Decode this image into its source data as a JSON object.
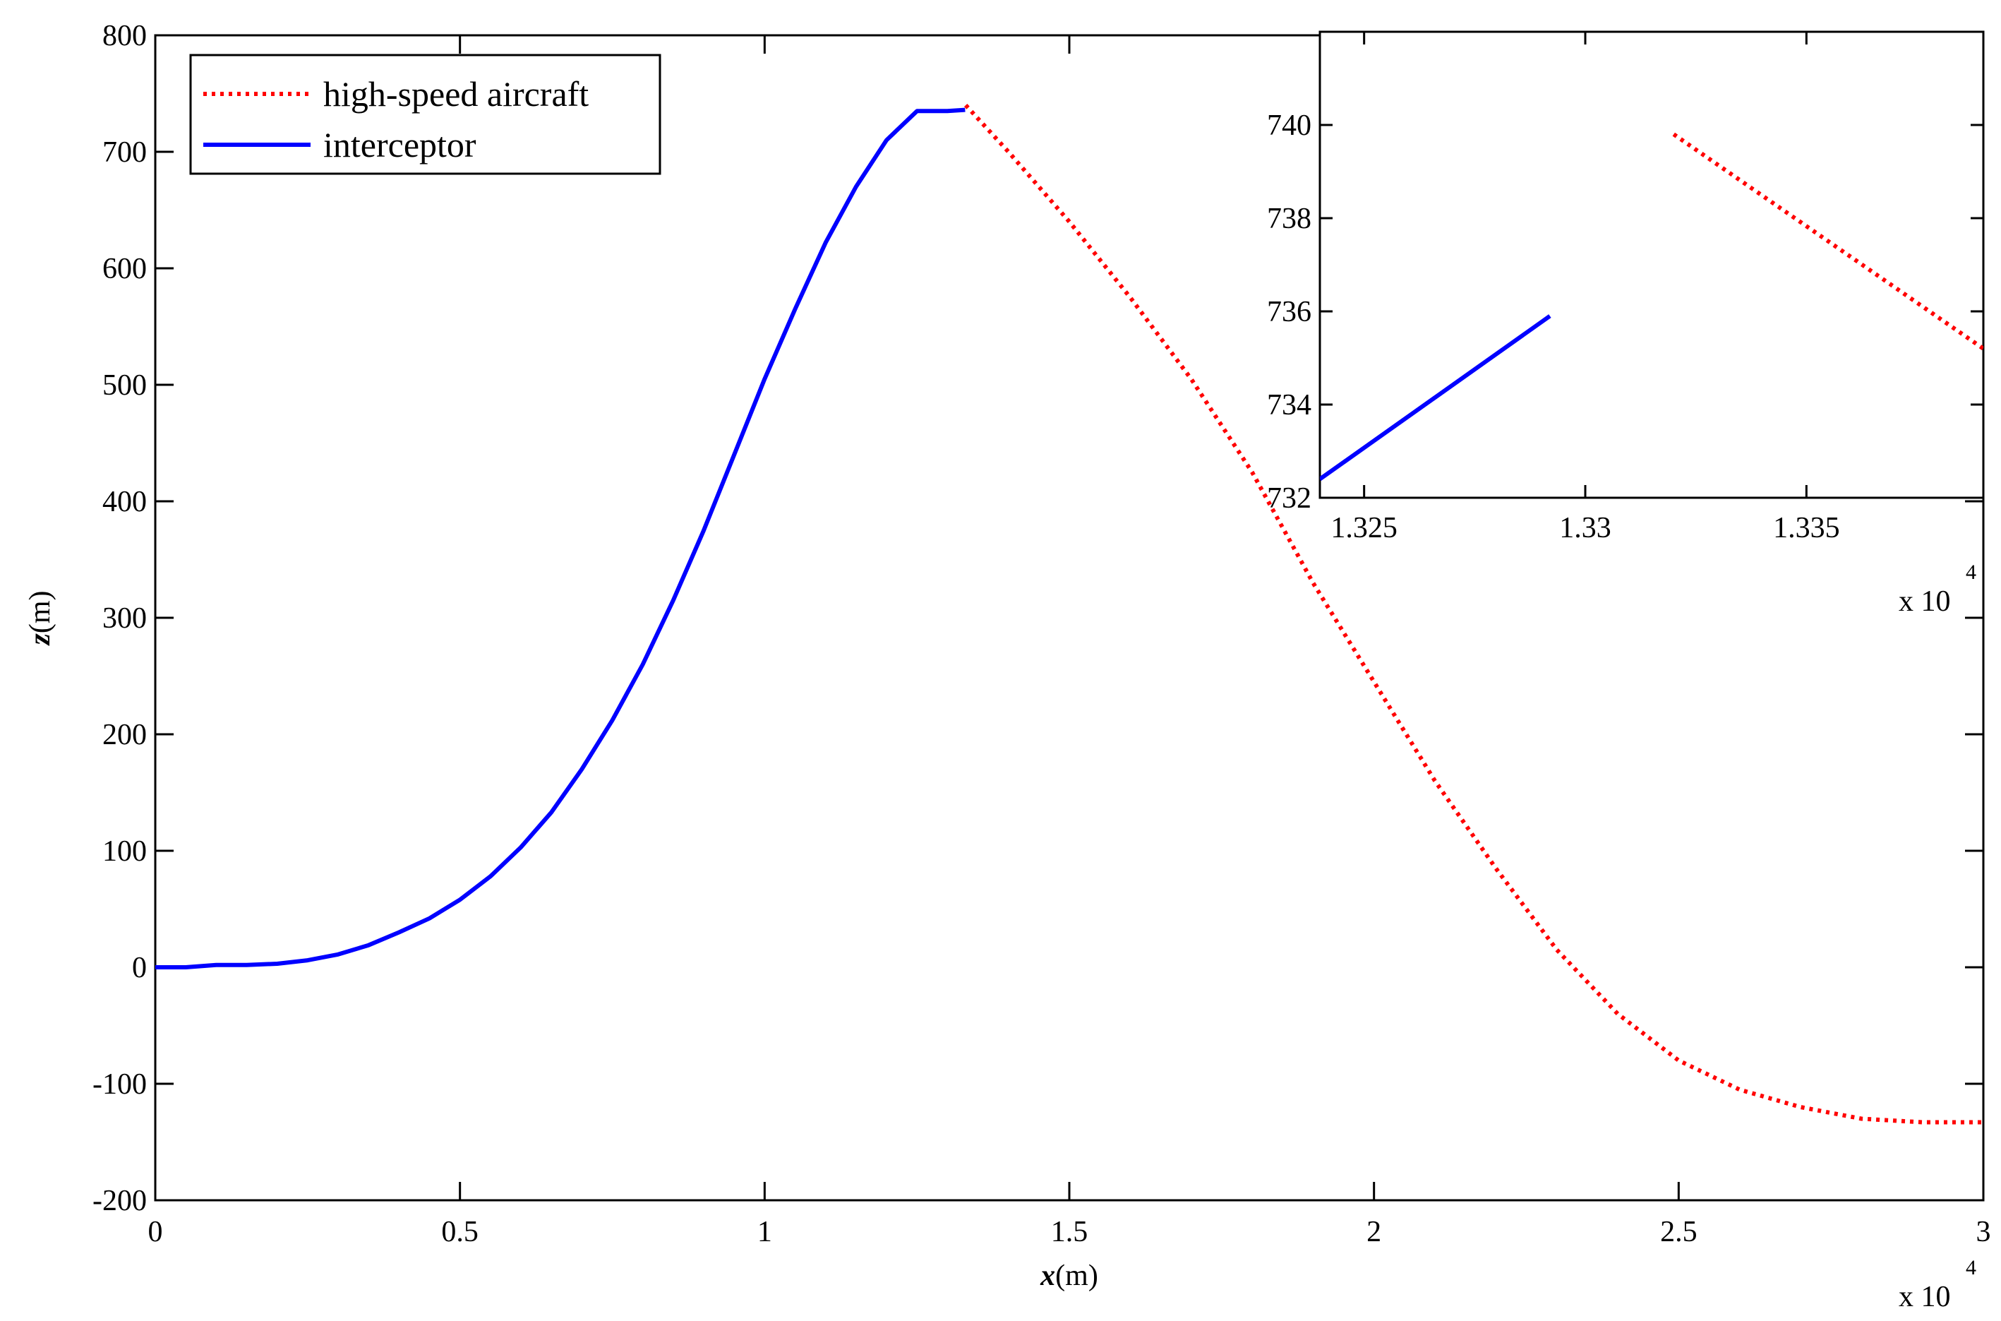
{
  "chart_data": [
    {
      "type": "line",
      "title": "",
      "xlabel": "x(m)",
      "ylabel": "z(m)",
      "x_multiplier_label": "x 10",
      "x_multiplier_exp": "4",
      "xlim": [
        0,
        30000
      ],
      "ylim": [
        -200,
        800
      ],
      "x_ticks": [
        0,
        5000,
        10000,
        15000,
        20000,
        25000,
        30000
      ],
      "x_tick_labels": [
        "0",
        "0.5",
        "1",
        "1.5",
        "2",
        "2.5",
        "3"
      ],
      "y_ticks": [
        -200,
        -100,
        0,
        100,
        200,
        300,
        400,
        500,
        600,
        700,
        800
      ],
      "y_tick_labels": [
        "-200",
        "-100",
        "0",
        "100",
        "200",
        "300",
        "400",
        "500",
        "600",
        "700",
        "800"
      ],
      "grid": false,
      "legend_position": "top-left",
      "series": [
        {
          "name": "high-speed aircraft",
          "color": "#ff0000",
          "style": "dotted",
          "x": [
            13300,
            14000,
            15000,
            16000,
            17000,
            18000,
            19000,
            20000,
            21000,
            22000,
            23000,
            24000,
            25000,
            26000,
            27000,
            28000,
            29000,
            30000
          ],
          "y": [
            740,
            700,
            640,
            575,
            505,
            425,
            330,
            245,
            160,
            85,
            15,
            -40,
            -80,
            -105,
            -120,
            -130,
            -133,
            -133
          ]
        },
        {
          "name": "interceptor",
          "color": "#0000ff",
          "style": "solid",
          "x": [
            0,
            500,
            1000,
            1500,
            2000,
            2500,
            3000,
            3500,
            4000,
            4500,
            5000,
            5500,
            6000,
            6500,
            7000,
            7500,
            8000,
            8500,
            9000,
            9500,
            10000,
            10500,
            11000,
            11500,
            12000,
            12500,
            13000,
            13290
          ],
          "y": [
            0,
            0,
            2,
            2,
            3,
            6,
            11,
            19,
            30,
            42,
            58,
            78,
            103,
            133,
            170,
            212,
            260,
            315,
            375,
            440,
            505,
            565,
            622,
            670,
            710,
            735,
            735,
            736
          ]
        }
      ]
    },
    {
      "type": "line",
      "title": "",
      "xlabel": "",
      "ylabel": "",
      "x_multiplier_label": "x 10",
      "x_multiplier_exp": "4",
      "xlim": [
        13240,
        13390
      ],
      "ylim": [
        732,
        742
      ],
      "x_ticks": [
        13250,
        13300,
        13350
      ],
      "x_tick_labels": [
        "1.325",
        "1.33",
        "1.335"
      ],
      "y_ticks": [
        732,
        734,
        736,
        738,
        740
      ],
      "y_tick_labels": [
        "732",
        "734",
        "736",
        "738",
        "740"
      ],
      "grid": false,
      "series": [
        {
          "name": "high-speed aircraft",
          "color": "#ff0000",
          "style": "dotted",
          "x": [
            13320,
            13390
          ],
          "y": [
            739.8,
            735.2
          ]
        },
        {
          "name": "interceptor",
          "color": "#0000ff",
          "style": "solid",
          "x": [
            13240,
            13292
          ],
          "y": [
            732.4,
            735.9
          ]
        }
      ]
    }
  ]
}
